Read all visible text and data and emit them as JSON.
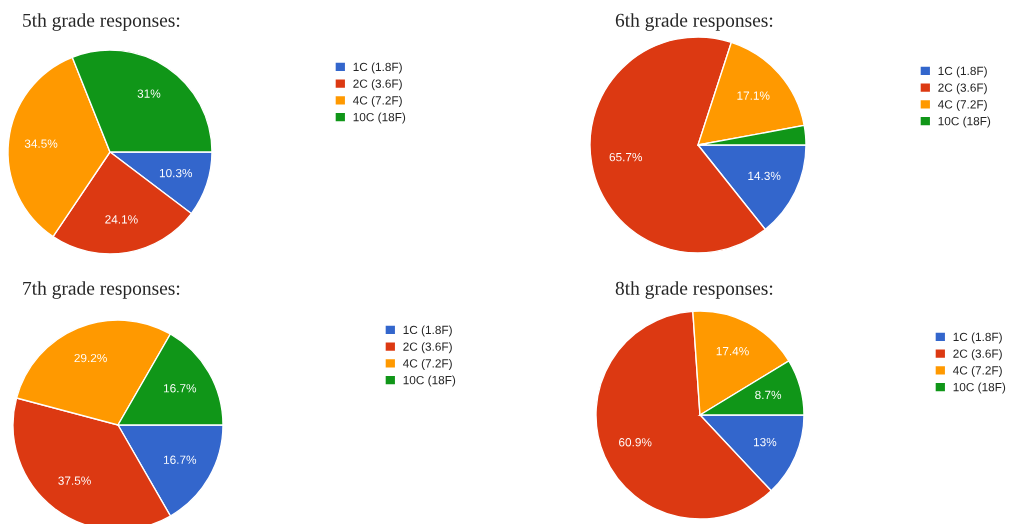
{
  "chart_data": [
    {
      "type": "pie",
      "title": "5th grade responses:",
      "categories": [
        "1C (1.8F)",
        "2C (3.6F)",
        "4C (7.2F)",
        "10C (18F)"
      ],
      "values": [
        10.3,
        24.1,
        34.5,
        31
      ],
      "colors": [
        "#3366cc",
        "#dc3912",
        "#ff9900",
        "#109618"
      ],
      "value_labels": [
        "10.3%",
        "24.1%",
        "34.5%",
        "31%"
      ],
      "legend": "right"
    },
    {
      "type": "pie",
      "title": "6th grade responses:",
      "categories": [
        "1C (1.8F)",
        "2C (3.6F)",
        "4C (7.2F)",
        "10C (18F)"
      ],
      "values": [
        14.3,
        65.7,
        17.1,
        2.9
      ],
      "colors": [
        "#3366cc",
        "#dc3912",
        "#ff9900",
        "#109618"
      ],
      "value_labels": [
        "14.3%",
        "65.7%",
        "17.1%",
        null
      ],
      "legend": "right"
    },
    {
      "type": "pie",
      "title": "7th grade responses:",
      "categories": [
        "1C (1.8F)",
        "2C (3.6F)",
        "4C (7.2F)",
        "10C (18F)"
      ],
      "values": [
        16.7,
        37.5,
        29.2,
        16.7
      ],
      "colors": [
        "#3366cc",
        "#dc3912",
        "#ff9900",
        "#109618"
      ],
      "value_labels": [
        "16.7%",
        "37.5%",
        "29.2%",
        "16.7%"
      ],
      "legend": "right"
    },
    {
      "type": "pie",
      "title": "8th grade responses:",
      "categories": [
        "1C (1.8F)",
        "2C (3.6F)",
        "4C (7.2F)",
        "10C (18F)"
      ],
      "values": [
        13,
        60.9,
        17.4,
        8.7
      ],
      "colors": [
        "#3366cc",
        "#dc3912",
        "#ff9900",
        "#109618"
      ],
      "value_labels": [
        "13%",
        "60.9%",
        "17.4%",
        "8.7%"
      ],
      "legend": "right"
    }
  ]
}
